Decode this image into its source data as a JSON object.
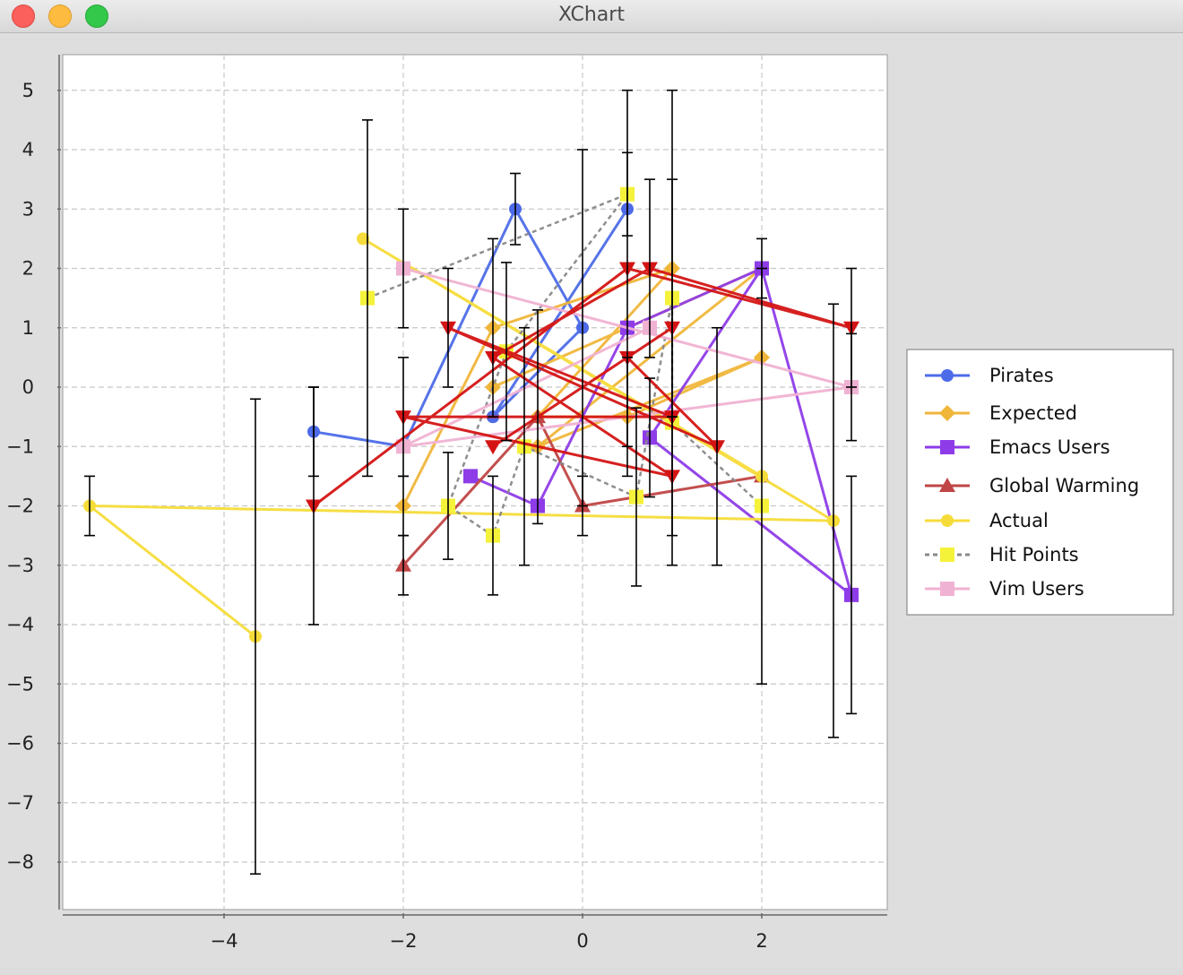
{
  "window": {
    "title": "XChart"
  },
  "chart_data": {
    "type": "line",
    "title": "",
    "xlabel": "",
    "ylabel": "",
    "xlim": [
      -5.8,
      3.4
    ],
    "ylim": [
      -8.8,
      5.6
    ],
    "xticks": [
      -4,
      -2,
      0,
      2
    ],
    "yticks": [
      5,
      4,
      3,
      2,
      1,
      0,
      -1,
      -2,
      -3,
      -4,
      -5,
      -6,
      -7,
      -8
    ],
    "grid": true,
    "legend_position": "right",
    "series": [
      {
        "name": "Pirates",
        "color": "#4d6be8",
        "marker": "circle",
        "line": "solid",
        "points": [
          {
            "x": -3.0,
            "y": -0.75,
            "err": 0.75
          },
          {
            "x": -2.0,
            "y": -1.0,
            "err": 0.0
          },
          {
            "x": -0.75,
            "y": 3.0,
            "err": 0.6
          },
          {
            "x": 0.0,
            "y": 1.0,
            "err": 3.0
          },
          {
            "x": -1.0,
            "y": -0.5,
            "err": 0.0
          },
          {
            "x": 0.5,
            "y": 3.0,
            "err": 0.0
          },
          {
            "x": -1.0,
            "y": -0.5,
            "err": 0.0
          }
        ]
      },
      {
        "name": "Expected",
        "color": "#f0b63a",
        "marker": "diamond",
        "line": "solid",
        "points": [
          {
            "x": -2.0,
            "y": -2.0,
            "err": 0.5
          },
          {
            "x": -1.0,
            "y": 1.0,
            "err": 1.5
          },
          {
            "x": 1.0,
            "y": 2.0,
            "err": 0.0
          },
          {
            "x": -0.5,
            "y": -0.5,
            "err": 1.8
          },
          {
            "x": 0.5,
            "y": -0.5,
            "err": 1.0
          },
          {
            "x": 2.0,
            "y": 0.5,
            "err": 0.0
          },
          {
            "x": -0.5,
            "y": -1.0,
            "err": 0.0
          },
          {
            "x": 2.0,
            "y": 2.0,
            "err": 0.0
          },
          {
            "x": -1.0,
            "y": 0.0,
            "err": 0.0
          }
        ]
      },
      {
        "name": "Emacs Users",
        "color": "#8e3ce8",
        "marker": "square",
        "line": "solid",
        "points": [
          {
            "x": -1.25,
            "y": -1.5,
            "err": 0.0
          },
          {
            "x": -0.5,
            "y": -2.0,
            "err": 0.0
          },
          {
            "x": 0.5,
            "y": 1.0,
            "err": 0.0
          },
          {
            "x": 2.0,
            "y": 2.0,
            "err": 0.5
          },
          {
            "x": 3.0,
            "y": -3.5,
            "err": 2.0
          },
          {
            "x": 0.75,
            "y": -0.85,
            "err": 1.0
          },
          {
            "x": 2.0,
            "y": 2.0,
            "err": 0.0
          }
        ]
      },
      {
        "name": "Global Warming",
        "color": "#c04545",
        "marker": "triangle",
        "line": "solid",
        "points": [
          {
            "x": -2.0,
            "y": -3.0,
            "err": 0.5
          },
          {
            "x": -0.5,
            "y": -0.5,
            "err": 0.0
          },
          {
            "x": 0.0,
            "y": -2.0,
            "err": 0.5
          },
          {
            "x": 2.0,
            "y": -1.5,
            "err": 3.5
          }
        ]
      },
      {
        "name": "Actual",
        "color": "#f6dc3a",
        "marker": "circle",
        "line": "solid",
        "points": [
          {
            "x": -3.65,
            "y": -4.2,
            "err": 4.0
          },
          {
            "x": -5.5,
            "y": -2.0,
            "err": 0.5
          },
          {
            "x": 2.8,
            "y": -2.25,
            "err": 3.65
          },
          {
            "x": -2.45,
            "y": 2.5,
            "err": 0.0
          },
          {
            "x": 2.0,
            "y": -1.5,
            "err": 0.0
          }
        ]
      },
      {
        "name": "Hit Points",
        "color": "#f5f23a",
        "marker": "square",
        "line": "dashed",
        "points": [
          {
            "x": -2.4,
            "y": 1.5,
            "err": 3.0
          },
          {
            "x": 0.5,
            "y": 3.25,
            "err": 0.7
          },
          {
            "x": -0.85,
            "y": 0.6,
            "err": 1.5
          },
          {
            "x": -1.5,
            "y": -2.0,
            "err": 0.9
          },
          {
            "x": -1.0,
            "y": -2.5,
            "err": 1.0
          },
          {
            "x": -0.65,
            "y": -1.0,
            "err": 2.0
          },
          {
            "x": 0.6,
            "y": -1.85,
            "err": 1.5
          },
          {
            "x": 1.0,
            "y": 1.5,
            "err": 2.0
          },
          {
            "x": 1.0,
            "y": -0.6,
            "err": 0.0
          },
          {
            "x": 2.0,
            "y": -2.0,
            "err": 0.0
          }
        ]
      },
      {
        "name": "Vim Users",
        "color": "#f0b2d2",
        "marker": "square",
        "line": "solid",
        "points": [
          {
            "x": -2.0,
            "y": 2.0,
            "err": 1.0
          },
          {
            "x": 3.0,
            "y": 0.0,
            "err": 0.9
          },
          {
            "x": -2.0,
            "y": -1.0,
            "err": 0.0
          },
          {
            "x": 0.75,
            "y": 1.0,
            "err": 0.0
          }
        ]
      },
      {
        "name": "",
        "color": "#d41414",
        "marker": "triangle-down",
        "line": "solid",
        "points": [
          {
            "x": -3.0,
            "y": -2.0,
            "err": 2.0
          },
          {
            "x": 0.5,
            "y": 2.0,
            "err": 3.0
          },
          {
            "x": 3.0,
            "y": 1.0,
            "err": 1.0
          },
          {
            "x": 0.75,
            "y": 2.0,
            "err": 1.5
          },
          {
            "x": -1.0,
            "y": 0.5,
            "err": 0.0
          },
          {
            "x": 1.0,
            "y": -1.5,
            "err": 1.0
          },
          {
            "x": -2.0,
            "y": -0.5,
            "err": 1.0
          },
          {
            "x": 1.0,
            "y": -0.5,
            "err": 0.0
          },
          {
            "x": -1.5,
            "y": 1.0,
            "err": 1.0
          },
          {
            "x": 1.5,
            "y": -1.0,
            "err": 2.0
          },
          {
            "x": 0.5,
            "y": 0.5,
            "err": 0.0
          },
          {
            "x": -1.0,
            "y": -1.0,
            "err": 0.0
          },
          {
            "x": 1.0,
            "y": 1.0,
            "err": 4.0
          }
        ]
      }
    ],
    "legend": [
      "Pirates",
      "Expected",
      "Emacs Users",
      "Global Warming",
      "Actual",
      "Hit Points",
      "Vim Users"
    ]
  }
}
